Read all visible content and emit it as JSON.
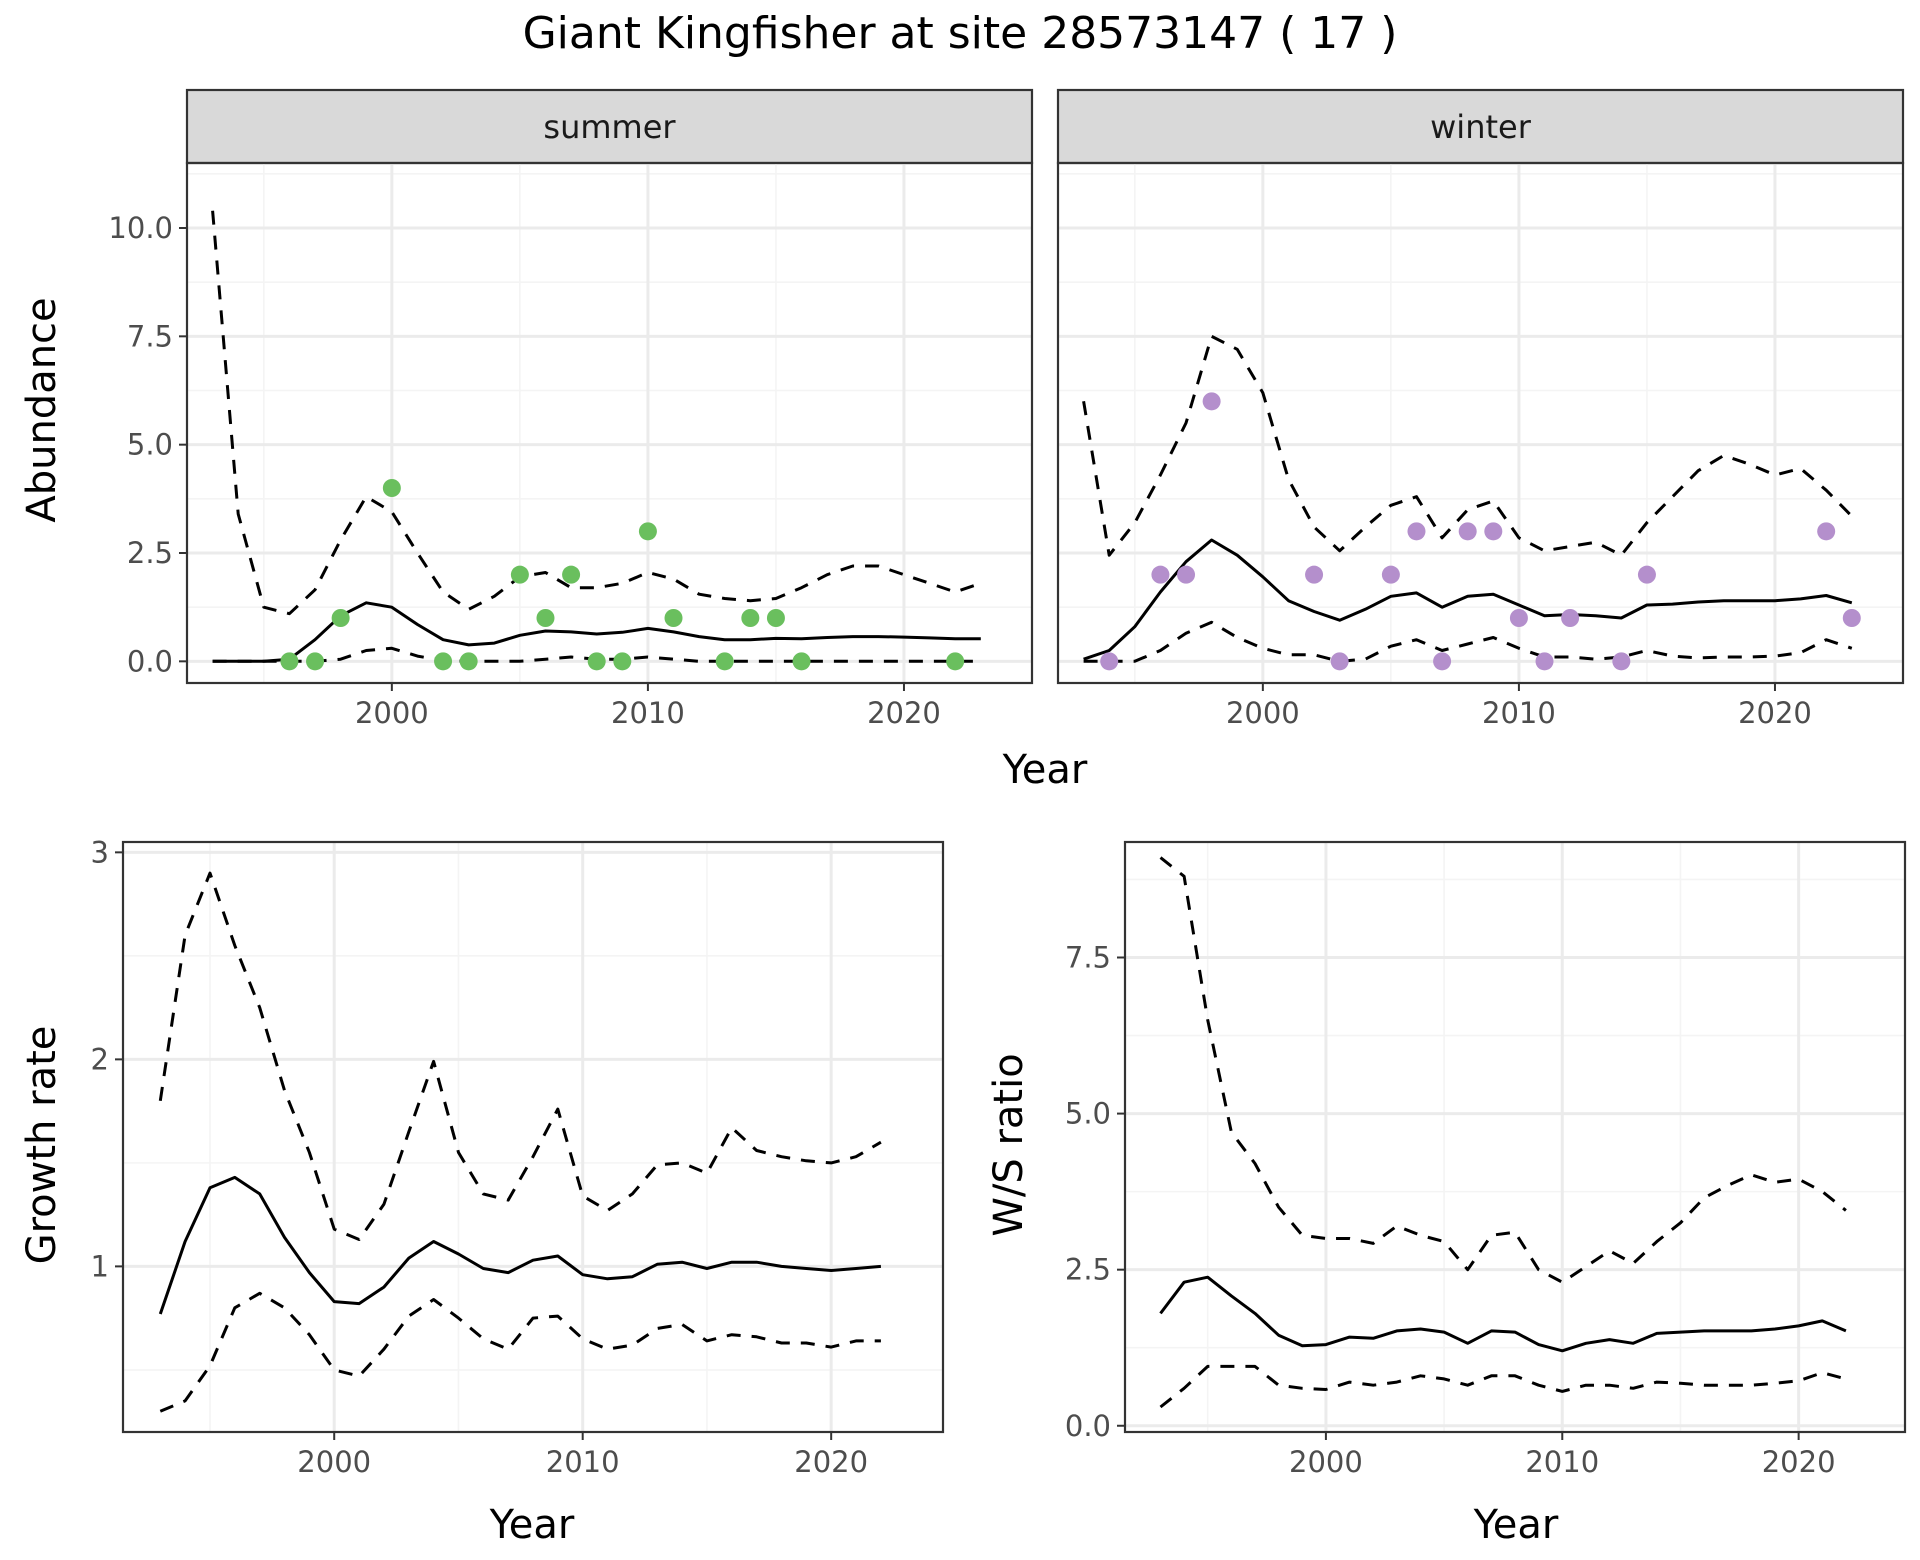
{
  "title": "Giant Kingfisher at site 28573147 ( 17 )",
  "chart_data": [
    {
      "id": "abundance",
      "type": "line",
      "ylabel": "Abundance",
      "xlabel": "Year",
      "xlim": [
        1992,
        2025
      ],
      "ylim": [
        -0.5,
        11.5
      ],
      "xticks": [
        2000,
        2010,
        2020
      ],
      "yticks": [
        0,
        2.5,
        5,
        7.5,
        10
      ],
      "ytick_labels": [
        "0.0",
        "2.5",
        "5.0",
        "7.5",
        "10.0"
      ],
      "facets": [
        {
          "label": "summer",
          "point_color": "#6abf5e",
          "x": [
            1993,
            1994,
            1995,
            1996,
            1997,
            1998,
            1999,
            2000,
            2001,
            2002,
            2003,
            2004,
            2005,
            2006,
            2007,
            2008,
            2009,
            2010,
            2011,
            2012,
            2013,
            2014,
            2015,
            2016,
            2017,
            2018,
            2019,
            2020,
            2021,
            2022,
            2023
          ],
          "mean": [
            0,
            0,
            0,
            0.05,
            0.5,
            1.05,
            1.35,
            1.25,
            0.85,
            0.5,
            0.38,
            0.42,
            0.6,
            0.7,
            0.68,
            0.63,
            0.67,
            0.76,
            0.68,
            0.57,
            0.5,
            0.5,
            0.53,
            0.52,
            0.55,
            0.57,
            0.57,
            0.56,
            0.54,
            0.52,
            0.52
          ],
          "upper": [
            10.4,
            3.4,
            1.25,
            1.1,
            1.65,
            2.8,
            3.8,
            3.45,
            2.5,
            1.6,
            1.2,
            1.5,
            1.95,
            2.05,
            1.7,
            1.7,
            1.8,
            2.05,
            1.9,
            1.55,
            1.45,
            1.4,
            1.45,
            1.7,
            2,
            2.2,
            2.2,
            2,
            1.8,
            1.6,
            1.8
          ],
          "lower": [
            0,
            0,
            0,
            0,
            0,
            0.05,
            0.25,
            0.3,
            0.12,
            0.02,
            0,
            0,
            0,
            0.05,
            0.1,
            0.05,
            0.05,
            0.1,
            0.05,
            0,
            0,
            0,
            0,
            0,
            0,
            0,
            0,
            0,
            0,
            0,
            0
          ],
          "points": {
            "x": [
              1996,
              1997,
              1998,
              2000,
              2002,
              2003,
              2005,
              2006,
              2007,
              2008,
              2009,
              2010,
              2011,
              2013,
              2014,
              2015,
              2016,
              2022
            ],
            "y": [
              0,
              0,
              1,
              4,
              0,
              0,
              2,
              1,
              2,
              0,
              0,
              3,
              1,
              0,
              1,
              1,
              0,
              0
            ]
          }
        },
        {
          "label": "winter",
          "point_color": "#b48fcc",
          "x": [
            1993,
            1994,
            1995,
            1996,
            1997,
            1998,
            1999,
            2000,
            2001,
            2002,
            2003,
            2004,
            2005,
            2006,
            2007,
            2008,
            2009,
            2010,
            2011,
            2012,
            2013,
            2014,
            2015,
            2016,
            2017,
            2018,
            2019,
            2020,
            2021,
            2022,
            2023
          ],
          "mean": [
            0.05,
            0.25,
            0.8,
            1.6,
            2.3,
            2.8,
            2.45,
            1.95,
            1.4,
            1.15,
            0.95,
            1.2,
            1.5,
            1.58,
            1.25,
            1.5,
            1.55,
            1.3,
            1.05,
            1.08,
            1.05,
            1.0,
            1.3,
            1.32,
            1.37,
            1.4,
            1.4,
            1.4,
            1.44,
            1.52,
            1.35
          ],
          "upper": [
            6.0,
            2.45,
            3.2,
            4.3,
            5.5,
            7.5,
            7.2,
            6.2,
            4.2,
            3.1,
            2.55,
            3.1,
            3.6,
            3.8,
            2.85,
            3.5,
            3.7,
            2.85,
            2.55,
            2.65,
            2.75,
            2.45,
            3.2,
            3.8,
            4.4,
            4.75,
            4.55,
            4.3,
            4.45,
            3.95,
            3.35
          ],
          "lower": [
            0,
            0,
            0,
            0.25,
            0.65,
            0.9,
            0.55,
            0.3,
            0.15,
            0.15,
            0,
            0.05,
            0.35,
            0.5,
            0.25,
            0.4,
            0.55,
            0.3,
            0.1,
            0.1,
            0.05,
            0.1,
            0.25,
            0.12,
            0.08,
            0.1,
            0.1,
            0.12,
            0.2,
            0.5,
            0.3
          ],
          "points": {
            "x": [
              1994,
              1996,
              1997,
              1998,
              2002,
              2003,
              2005,
              2006,
              2007,
              2008,
              2009,
              2010,
              2011,
              2012,
              2014,
              2015,
              2022,
              2023
            ],
            "y": [
              0,
              2,
              2,
              6,
              2,
              0,
              2,
              3,
              0,
              3,
              3,
              1,
              0,
              1,
              0,
              2,
              3,
              1
            ]
          }
        }
      ]
    },
    {
      "id": "growth",
      "type": "line",
      "ylabel": "Growth rate",
      "xlabel": "Year",
      "xlim": [
        1991.5,
        2024.5
      ],
      "ylim": [
        0.2,
        3.05
      ],
      "xticks": [
        2000,
        2010,
        2020
      ],
      "yticks": [
        1,
        2,
        3
      ],
      "ytick_labels": [
        "1",
        "2",
        "3"
      ],
      "x": [
        1993,
        1994,
        1995,
        1996,
        1997,
        1998,
        1999,
        2000,
        2001,
        2002,
        2003,
        2004,
        2005,
        2006,
        2007,
        2008,
        2009,
        2010,
        2011,
        2012,
        2013,
        2014,
        2015,
        2016,
        2017,
        2018,
        2019,
        2020,
        2021,
        2022
      ],
      "mean": [
        0.77,
        1.12,
        1.38,
        1.43,
        1.35,
        1.14,
        0.97,
        0.83,
        0.82,
        0.9,
        1.04,
        1.12,
        1.06,
        0.99,
        0.97,
        1.03,
        1.05,
        0.96,
        0.94,
        0.95,
        1.01,
        1.02,
        0.99,
        1.02,
        1.02,
        1.0,
        0.99,
        0.98,
        0.99,
        1.0
      ],
      "upper": [
        1.8,
        2.6,
        2.9,
        2.55,
        2.25,
        1.85,
        1.55,
        1.18,
        1.13,
        1.3,
        1.65,
        1.99,
        1.55,
        1.35,
        1.32,
        1.53,
        1.76,
        1.34,
        1.27,
        1.35,
        1.49,
        1.5,
        1.45,
        1.67,
        1.56,
        1.53,
        1.51,
        1.5,
        1.53,
        1.6
      ],
      "lower": [
        0.3,
        0.35,
        0.52,
        0.8,
        0.87,
        0.8,
        0.67,
        0.5,
        0.47,
        0.6,
        0.76,
        0.84,
        0.75,
        0.65,
        0.6,
        0.75,
        0.76,
        0.65,
        0.6,
        0.62,
        0.7,
        0.72,
        0.64,
        0.67,
        0.66,
        0.63,
        0.63,
        0.61,
        0.64,
        0.64
      ]
    },
    {
      "id": "ws_ratio",
      "type": "line",
      "ylabel": "W/S ratio",
      "xlabel": "Year",
      "xlim": [
        1991.5,
        2024.5
      ],
      "ylim": [
        -0.1,
        9.35
      ],
      "xticks": [
        2000,
        2010,
        2020
      ],
      "yticks": [
        0,
        2.5,
        5,
        7.5
      ],
      "ytick_labels": [
        "0.0",
        "2.5",
        "5.0",
        "7.5"
      ],
      "x": [
        1993,
        1994,
        1995,
        1996,
        1997,
        1998,
        1999,
        2000,
        2001,
        2002,
        2003,
        2004,
        2005,
        2006,
        2007,
        2008,
        2009,
        2010,
        2011,
        2012,
        2013,
        2014,
        2015,
        2016,
        2017,
        2018,
        2019,
        2020,
        2021,
        2022
      ],
      "mean": [
        1.8,
        2.3,
        2.38,
        2.08,
        1.8,
        1.45,
        1.28,
        1.3,
        1.42,
        1.4,
        1.52,
        1.55,
        1.5,
        1.32,
        1.52,
        1.5,
        1.3,
        1.2,
        1.32,
        1.38,
        1.32,
        1.48,
        1.5,
        1.52,
        1.52,
        1.52,
        1.55,
        1.6,
        1.68,
        1.52
      ],
      "upper": [
        9.1,
        8.8,
        6.5,
        4.7,
        4.2,
        3.5,
        3.05,
        3.0,
        3.0,
        2.92,
        3.2,
        3.05,
        2.95,
        2.5,
        3.05,
        3.1,
        2.5,
        2.3,
        2.55,
        2.8,
        2.6,
        2.95,
        3.25,
        3.65,
        3.85,
        4.02,
        3.9,
        3.95,
        3.75,
        3.45
      ],
      "lower": [
        0.3,
        0.6,
        0.95,
        0.95,
        0.95,
        0.65,
        0.6,
        0.58,
        0.7,
        0.65,
        0.7,
        0.8,
        0.75,
        0.65,
        0.8,
        0.8,
        0.65,
        0.55,
        0.65,
        0.65,
        0.6,
        0.7,
        0.68,
        0.65,
        0.65,
        0.65,
        0.68,
        0.72,
        0.85,
        0.75
      ]
    }
  ]
}
